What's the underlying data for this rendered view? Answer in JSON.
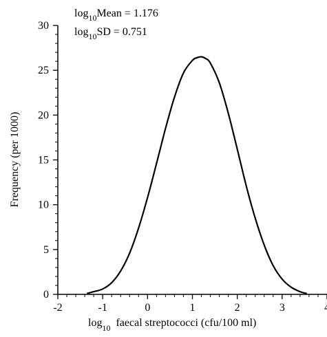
{
  "chart_data": {
    "type": "line",
    "title": "",
    "xlabel": {
      "prefix": "log",
      "sub": "10",
      "rest": "faecal streptococci (cfu/100 ml)"
    },
    "ylabel": "Frequency (per 1000)",
    "xlim": [
      -2,
      4
    ],
    "ylim": [
      0,
      30
    ],
    "x_ticks": [
      -2,
      -1,
      0,
      1,
      2,
      3,
      4
    ],
    "y_ticks": [
      0,
      5,
      10,
      15,
      20,
      25,
      30
    ],
    "grid": false,
    "annotations": [
      {
        "prefix": "log",
        "sub": "10",
        "rest": "Mean = 1.176"
      },
      {
        "prefix": "log",
        "sub": "10",
        "rest": "SD = 0.751"
      }
    ],
    "series": [
      {
        "x": [
          -1.35,
          -1.2,
          -1.0,
          -0.8,
          -0.6,
          -0.4,
          -0.2,
          0.0,
          0.2,
          0.4,
          0.6,
          0.8,
          1.0,
          1.1,
          1.2,
          1.3,
          1.4,
          1.6,
          1.8,
          2.0,
          2.2,
          2.4,
          2.6,
          2.8,
          3.0,
          3.2,
          3.4,
          3.55
        ],
        "y": [
          0.1,
          0.3,
          0.6,
          1.3,
          2.6,
          4.6,
          7.4,
          10.8,
          14.6,
          18.5,
          22.0,
          24.7,
          26.1,
          26.4,
          26.5,
          26.3,
          25.8,
          23.6,
          20.2,
          16.2,
          12.1,
          8.5,
          5.5,
          3.2,
          1.7,
          0.8,
          0.3,
          0.1
        ]
      }
    ]
  }
}
